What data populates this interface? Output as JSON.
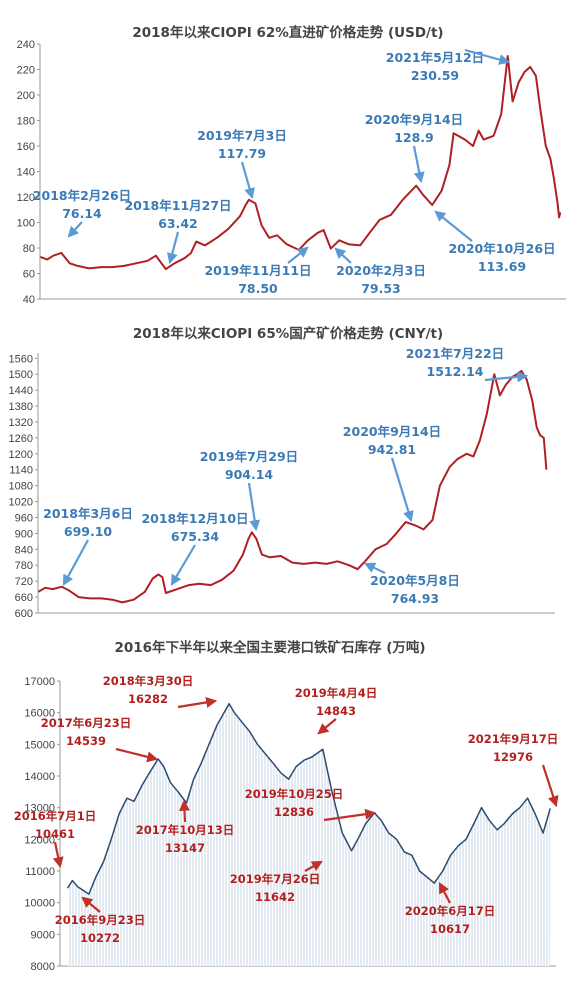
{
  "chart_data": [
    {
      "type": "line",
      "title": "2018年以来CIOPI 62%直进矿价格走势 (USD/t)",
      "ylim": [
        40,
        240
      ],
      "yticks": [
        40,
        60,
        80,
        100,
        120,
        140,
        160,
        180,
        200,
        220,
        240
      ],
      "grid": false,
      "color": "#b01f24",
      "series": [
        {
          "values": [
            [
              "2018-01-02",
              73
            ],
            [
              "2018-01-20",
              71
            ],
            [
              "2018-02-05",
              74
            ],
            [
              "2018-02-26",
              76.14
            ],
            [
              "2018-03-20",
              68
            ],
            [
              "2018-04-10",
              66
            ],
            [
              "2018-05-10",
              64
            ],
            [
              "2018-06-10",
              65
            ],
            [
              "2018-07-10",
              65
            ],
            [
              "2018-08-10",
              66
            ],
            [
              "2018-09-10",
              68
            ],
            [
              "2018-10-10",
              70
            ],
            [
              "2018-11-01",
              74
            ],
            [
              "2018-11-27",
              63.42
            ],
            [
              "2018-12-20",
              68
            ],
            [
              "2019-01-15",
              72
            ],
            [
              "2019-02-01",
              76
            ],
            [
              "2019-02-15",
              85
            ],
            [
              "2019-03-10",
              82
            ],
            [
              "2019-04-10",
              88
            ],
            [
              "2019-05-10",
              95
            ],
            [
              "2019-06-10",
              105
            ],
            [
              "2019-06-25",
              114
            ],
            [
              "2019-07-03",
              117.79
            ],
            [
              "2019-07-20",
              115
            ],
            [
              "2019-08-05",
              98
            ],
            [
              "2019-08-25",
              88
            ],
            [
              "2019-09-15",
              90
            ],
            [
              "2019-10-10",
              83
            ],
            [
              "2019-11-11",
              78.5
            ],
            [
              "2019-12-05",
              86
            ],
            [
              "2019-12-31",
              92
            ],
            [
              "2020-01-15",
              94
            ],
            [
              "2020-02-03",
              79.53
            ],
            [
              "2020-02-25",
              86
            ],
            [
              "2020-03-20",
              83
            ],
            [
              "2020-04-20",
              82
            ],
            [
              "2020-05-15",
              92
            ],
            [
              "2020-06-10",
              102
            ],
            [
              "2020-07-10",
              106
            ],
            [
              "2020-08-10",
              118
            ],
            [
              "2020-09-14",
              128.9
            ],
            [
              "2020-10-01",
              122
            ],
            [
              "2020-10-26",
              113.69
            ],
            [
              "2020-11-20",
              125
            ],
            [
              "2020-12-10",
              145
            ],
            [
              "2020-12-21",
              170
            ],
            [
              "2021-01-20",
              165
            ],
            [
              "2021-02-10",
              160
            ],
            [
              "2021-02-25",
              172
            ],
            [
              "2021-03-10",
              165
            ],
            [
              "2021-04-05",
              168
            ],
            [
              "2021-04-25",
              185
            ],
            [
              "2021-05-12",
              230.59
            ],
            [
              "2021-05-25",
              195
            ],
            [
              "2021-06-10",
              210
            ],
            [
              "2021-06-25",
              218
            ],
            [
              "2021-07-10",
              222
            ],
            [
              "2021-07-25",
              215
            ],
            [
              "2021-08-05",
              190
            ],
            [
              "2021-08-20",
              160
            ],
            [
              "2021-09-01",
              150
            ],
            [
              "2021-09-10",
              135
            ],
            [
              "2021-09-20",
              115
            ],
            [
              "2021-09-24",
              104
            ],
            [
              "2021-09-27",
              108
            ]
          ]
        }
      ],
      "annotations": [
        {
          "date": "2018年2月26日",
          "value": "76.14"
        },
        {
          "date": "2018年11月27日",
          "value": "63.42"
        },
        {
          "date": "2019年7月3日",
          "value": "117.79"
        },
        {
          "date": "2019年11月11日",
          "value": "78.50"
        },
        {
          "date": "2020年2月3日",
          "value": "79.53"
        },
        {
          "date": "2020年9月14日",
          "value": "128.9"
        },
        {
          "date": "2020年10月26日",
          "value": "113.69"
        },
        {
          "date": "2021年5月12日",
          "value": "230.59"
        }
      ]
    },
    {
      "type": "line",
      "title": "2018年以来CIOPI 65%国产矿价格走势 (CNY/t)",
      "ylim": [
        600,
        1580
      ],
      "yticks": [
        600,
        660,
        720,
        780,
        840,
        900,
        960,
        1020,
        1080,
        1140,
        1200,
        1260,
        1320,
        1380,
        1440,
        1500,
        1560
      ],
      "grid": false,
      "color": "#b01f24",
      "series": [
        {
          "values": [
            [
              "2018-01-02",
              680
            ],
            [
              "2018-01-20",
              695
            ],
            [
              "2018-02-10",
              690
            ],
            [
              "2018-03-06",
              699.1
            ],
            [
              "2018-03-25",
              685
            ],
            [
              "2018-04-20",
              660
            ],
            [
              "2018-05-20",
              655
            ],
            [
              "2018-06-20",
              655
            ],
            [
              "2018-07-20",
              650
            ],
            [
              "2018-08-15",
              640
            ],
            [
              "2018-09-15",
              650
            ],
            [
              "2018-10-15",
              680
            ],
            [
              "2018-11-05",
              730
            ],
            [
              "2018-11-20",
              745
            ],
            [
              "2018-12-01",
              735
            ],
            [
              "2018-12-10",
              675.34
            ],
            [
              "2019-01-10",
              690
            ],
            [
              "2019-02-10",
              705
            ],
            [
              "2019-03-10",
              710
            ],
            [
              "2019-04-10",
              705
            ],
            [
              "2019-05-10",
              725
            ],
            [
              "2019-06-10",
              760
            ],
            [
              "2019-07-05",
              820
            ],
            [
              "2019-07-20",
              880
            ],
            [
              "2019-07-29",
              904.14
            ],
            [
              "2019-08-10",
              880
            ],
            [
              "2019-08-25",
              820
            ],
            [
              "2019-09-15",
              810
            ],
            [
              "2019-10-15",
              815
            ],
            [
              "2019-11-15",
              790
            ],
            [
              "2019-12-15",
              785
            ],
            [
              "2020-01-15",
              790
            ],
            [
              "2020-02-15",
              785
            ],
            [
              "2020-03-15",
              795
            ],
            [
              "2020-04-15",
              780
            ],
            [
              "2020-05-08",
              764.93
            ],
            [
              "2020-05-25",
              790
            ],
            [
              "2020-06-25",
              840
            ],
            [
              "2020-07-25",
              860
            ],
            [
              "2020-08-20",
              900
            ],
            [
              "2020-09-14",
              942.81
            ],
            [
              "2020-10-10",
              930
            ],
            [
              "2020-11-01",
              915
            ],
            [
              "2020-11-25",
              950
            ],
            [
              "2020-12-15",
              1080
            ],
            [
              "2021-01-10",
              1150
            ],
            [
              "2021-01-31",
              1180
            ],
            [
              "2021-02-25",
              1200
            ],
            [
              "2021-03-15",
              1190
            ],
            [
              "2021-04-01",
              1250
            ],
            [
              "2021-04-20",
              1350
            ],
            [
              "2021-05-10",
              1500
            ],
            [
              "2021-05-25",
              1420
            ],
            [
              "2021-06-10",
              1460
            ],
            [
              "2021-06-28",
              1490
            ],
            [
              "2021-07-10",
              1500
            ],
            [
              "2021-07-22",
              1512.14
            ],
            [
              "2021-08-05",
              1480
            ],
            [
              "2021-08-20",
              1400
            ],
            [
              "2021-09-01",
              1300
            ],
            [
              "2021-09-10",
              1270
            ],
            [
              "2021-09-20",
              1260
            ],
            [
              "2021-09-27",
              1140
            ]
          ]
        }
      ],
      "annotations": [
        {
          "date": "2018年3月6日",
          "value": "699.10"
        },
        {
          "date": "2018年12月10日",
          "value": "675.34"
        },
        {
          "date": "2019年7月29日",
          "value": "904.14"
        },
        {
          "date": "2020年5月8日",
          "value": "764.93"
        },
        {
          "date": "2020年9月14日",
          "value": "942.81"
        },
        {
          "date": "2021年7月22日",
          "value": "1512.14"
        }
      ]
    },
    {
      "type": "area",
      "title": "2016年下半年以来全国主要港口铁矿石库存 (万吨)",
      "ylim": [
        8000,
        17000
      ],
      "yticks": [
        8000,
        9000,
        10000,
        11000,
        12000,
        13000,
        14000,
        15000,
        16000,
        17000
      ],
      "grid": false,
      "color": "#2b4c6f",
      "series": [
        {
          "values": [
            [
              "2016-07-01",
              10461
            ],
            [
              "2016-07-20",
              10700
            ],
            [
              "2016-08-10",
              10500
            ],
            [
              "2016-09-23",
              10272
            ],
            [
              "2016-10-20",
              10800
            ],
            [
              "2016-11-20",
              11300
            ],
            [
              "2016-12-20",
              12000
            ],
            [
              "2017-01-20",
              12800
            ],
            [
              "2017-02-20",
              13300
            ],
            [
              "2017-03-20",
              13200
            ],
            [
              "2017-04-20",
              13700
            ],
            [
              "2017-05-20",
              14100
            ],
            [
              "2017-06-23",
              14539
            ],
            [
              "2017-07-15",
              14300
            ],
            [
              "2017-08-10",
              13800
            ],
            [
              "2017-09-10",
              13500
            ],
            [
              "2017-10-13",
              13147
            ],
            [
              "2017-11-10",
              13900
            ],
            [
              "2017-12-10",
              14400
            ],
            [
              "2018-01-10",
              15000
            ],
            [
              "2018-02-10",
              15600
            ],
            [
              "2018-03-30",
              16282
            ],
            [
              "2018-04-20",
              16000
            ],
            [
              "2018-05-20",
              15700
            ],
            [
              "2018-06-20",
              15400
            ],
            [
              "2018-07-20",
              15000
            ],
            [
              "2018-08-20",
              14700
            ],
            [
              "2018-09-20",
              14400
            ],
            [
              "2018-10-20",
              14100
            ],
            [
              "2018-11-20",
              13900
            ],
            [
              "2018-12-20",
              14300
            ],
            [
              "2019-01-20",
              14500
            ],
            [
              "2019-02-20",
              14600
            ],
            [
              "2019-04-04",
              14843
            ],
            [
              "2019-05-10",
              13500
            ],
            [
              "2019-06-20",
              12200
            ],
            [
              "2019-07-26",
              11642
            ],
            [
              "2019-08-20",
              12000
            ],
            [
              "2019-09-20",
              12500
            ],
            [
              "2019-10-25",
              12836
            ],
            [
              "2019-11-20",
              12600
            ],
            [
              "2019-12-20",
              12200
            ],
            [
              "2020-01-20",
              12000
            ],
            [
              "2020-02-20",
              11600
            ],
            [
              "2020-03-20",
              11500
            ],
            [
              "2020-04-20",
              11000
            ],
            [
              "2020-06-17",
              10617
            ],
            [
              "2020-07-20",
              11000
            ],
            [
              "2020-08-20",
              11500
            ],
            [
              "2020-09-20",
              11800
            ],
            [
              "2020-10-20",
              12000
            ],
            [
              "2020-11-20",
              12500
            ],
            [
              "2020-12-20",
              13000
            ],
            [
              "2021-01-20",
              12600
            ],
            [
              "2021-02-20",
              12300
            ],
            [
              "2021-03-20",
              12500
            ],
            [
              "2021-04-20",
              12800
            ],
            [
              "2021-05-20",
              13000
            ],
            [
              "2021-06-20",
              13300
            ],
            [
              "2021-07-20",
              12800
            ],
            [
              "2021-08-20",
              12200
            ],
            [
              "2021-09-17",
              12976
            ]
          ]
        }
      ],
      "annotations": [
        {
          "date": "2016年7月1日",
          "value": "10461"
        },
        {
          "date": "2016年9月23日",
          "value": "10272"
        },
        {
          "date": "2017年6月23日",
          "value": "14539"
        },
        {
          "date": "2017年10月13日",
          "value": "13147"
        },
        {
          "date": "2018年3月30日",
          "value": "16282"
        },
        {
          "date": "2019年4月4日",
          "value": "14843"
        },
        {
          "date": "2019年7月26日",
          "value": "11642"
        },
        {
          "date": "2019年10月25日",
          "value": "12836"
        },
        {
          "date": "2020年6月17日",
          "value": "10617"
        },
        {
          "date": "2021年9月17日",
          "value": "12976"
        }
      ]
    }
  ]
}
